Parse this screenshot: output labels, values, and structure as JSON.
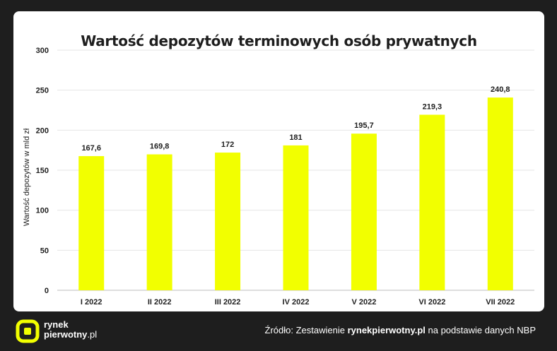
{
  "chart_data": {
    "type": "bar",
    "title": "Wartość depozytów terminowych osób prywatnych",
    "ylabel": "Wartość depozytów w mld zł",
    "xlabel": "",
    "categories": [
      "I 2022",
      "II 2022",
      "III 2022",
      "IV 2022",
      "V 2022",
      "VI 2022",
      "VII 2022"
    ],
    "values": [
      167.6,
      169.8,
      172,
      181,
      195.7,
      219.3,
      240.8
    ],
    "value_labels": [
      "167,6",
      "169,8",
      "172",
      "181",
      "195,7",
      "219,3",
      "240,8"
    ],
    "ylim": [
      0,
      300
    ],
    "yticks": [
      0,
      50,
      100,
      150,
      200,
      250,
      300
    ],
    "grid": true,
    "bar_color": "#f2ff00"
  },
  "footer": {
    "brand_line1": "rynek",
    "brand_line2": "pierwotny",
    "brand_suffix": ".pl",
    "source_prefix": "Źródło: Zestawienie ",
    "source_bold": "rynekpierwotny.pl",
    "source_suffix": " na podstawie danych NBP"
  },
  "colors": {
    "accent": "#f2ff00",
    "background": "#1e1e1e"
  }
}
